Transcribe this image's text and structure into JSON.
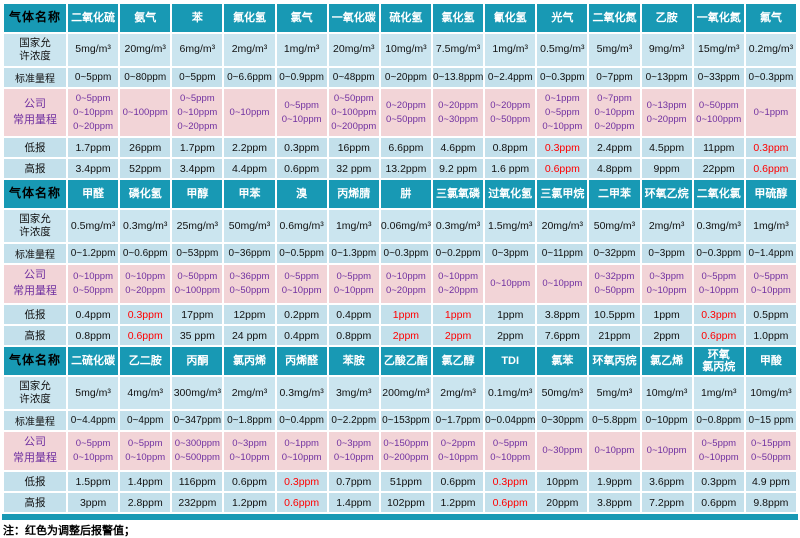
{
  "row_labels": {
    "gas_name": "气体名称",
    "national": [
      "国家允",
      "许浓度"
    ],
    "standard": "标准量程",
    "company": [
      "公司",
      "常用量程"
    ],
    "low": "低报",
    "high": "高报"
  },
  "note": "注：红色为调整后报警值；",
  "colors": {
    "teal": "#1899b4",
    "rowblue": "#cbe5ef",
    "rowblue2": "#c3e0eb",
    "pink": "#f2d4d7",
    "purple": "#7030a0",
    "red": "#ff0000",
    "grid": "#ffffff"
  },
  "sections": [
    {
      "gases": [
        "二氧化硫",
        "氨气",
        "苯",
        "氟化氢",
        "氯气",
        "一氧化碳",
        "硫化氢",
        "氯化氢",
        "氰化氢",
        "光气",
        "二氧化氮",
        "乙胺",
        "一氧化氮",
        "氟气"
      ],
      "national": [
        "5mg/m³",
        "20mg/m³",
        "6mg/m³",
        "2mg/m³",
        "1mg/m³",
        "20mg/m³",
        "10mg/m³",
        "7.5mg/m³",
        "1mg/m³",
        "0.5mg/m³",
        "5mg/m³",
        "9mg/m³",
        "15mg/m³",
        "0.2mg/m³"
      ],
      "standard": [
        "0~5ppm",
        "0~80ppm",
        "0~5ppm",
        "0~6.6ppm",
        "0~0.9ppm",
        "0~48ppm",
        "0~20ppm",
        "0~13.8ppm",
        "0~2.4ppm",
        "0~0.3ppm",
        "0~7ppm",
        "0~13ppm",
        "0~33ppm",
        "0~0.3ppm"
      ],
      "company": [
        [
          "0~5ppm",
          "0~10ppm",
          "0~20ppm"
        ],
        [
          "0~100ppm"
        ],
        [
          "0~5ppm",
          "0~10ppm",
          "0~20ppm"
        ],
        [
          "0~10ppm"
        ],
        [
          "0~5ppm",
          "0~10ppm"
        ],
        [
          "0~50ppm",
          "0~100ppm",
          "0~200ppm"
        ],
        [
          "0~20ppm",
          "0~50ppm"
        ],
        [
          "0~20ppm",
          "0~30ppm"
        ],
        [
          "0~20ppm",
          "0~50ppm"
        ],
        [
          "0~1ppm",
          "0~5ppm",
          "0~10ppm"
        ],
        [
          "0~7ppm",
          "0~10ppm",
          "0~20ppm"
        ],
        [
          "0~13ppm",
          "0~20ppm"
        ],
        [
          "0~50ppm",
          "0~100ppm"
        ],
        [
          "0~1ppm"
        ]
      ],
      "low": [
        "1.7ppm",
        "26ppm",
        "1.7ppm",
        "2.2ppm",
        "0.3ppm",
        "16ppm",
        "6.6ppm",
        "4.6ppm",
        "0.8ppm",
        "0.3ppm",
        "2.4ppm",
        "4.5ppm",
        "11ppm",
        "0.3ppm"
      ],
      "low_red": [
        9,
        13
      ],
      "high": [
        "3.4ppm",
        "52ppm",
        "3.4ppm",
        "4.4ppm",
        "0.6ppm",
        "32 ppm",
        "13.2ppm",
        "9.2 ppm",
        "1.6 ppm",
        "0.6ppm",
        "4.8ppm",
        "9ppm",
        "22ppm",
        "0.6ppm"
      ],
      "high_red": [
        9,
        13
      ]
    },
    {
      "gases": [
        "甲醛",
        "磷化氢",
        "甲醇",
        "甲苯",
        "溴",
        "丙烯腈",
        "肼",
        "三氯氧磷",
        "过氧化氢",
        "三氯甲烷",
        "二甲苯",
        "环氧乙烷",
        "二氧化氯",
        "甲硫醇"
      ],
      "national": [
        "0.5mg/m³",
        "0.3mg/m³",
        "25mg/m³",
        "50mg/m³",
        "0.6mg/m³",
        "1mg/m³",
        "0.06mg/m³",
        "0.3mg/m³",
        "1.5mg/m³",
        "20mg/m³",
        "50mg/m³",
        "2mg/m³",
        "0.3mg/m³",
        "1mg/m³"
      ],
      "standard": [
        "0~1.2ppm",
        "0~0.6ppm",
        "0~53ppm",
        "0~36ppm",
        "0~0.5ppm",
        "0~1.3ppm",
        "0~0.3ppm",
        "0~0.2ppm",
        "0~3ppm",
        "0~11ppm",
        "0~32ppm",
        "0~3ppm",
        "0~0.3ppm",
        "0~1.4ppm"
      ],
      "company": [
        [
          "0~10ppm",
          "0~50ppm"
        ],
        [
          "0~10ppm",
          "0~20ppm"
        ],
        [
          "0~50ppm",
          "0~100ppm"
        ],
        [
          "0~36ppm",
          "0~50ppm"
        ],
        [
          "0~5ppm",
          "0~10ppm"
        ],
        [
          "0~5ppm",
          "0~10ppm"
        ],
        [
          "0~10ppm",
          "0~20ppm"
        ],
        [
          "0~10ppm",
          "0~20ppm"
        ],
        [
          "0~10ppm"
        ],
        [
          "0~10ppm"
        ],
        [
          "0~32ppm",
          "0~50ppm"
        ],
        [
          "0~3ppm",
          "0~10ppm"
        ],
        [
          "0~5ppm",
          "0~10ppm"
        ],
        [
          "0~5ppm",
          "0~10ppm"
        ]
      ],
      "low": [
        "0.4ppm",
        "0.3ppm",
        "17ppm",
        "12ppm",
        "0.2ppm",
        "0.4ppm",
        "1ppm",
        "1ppm",
        "1ppm",
        "3.8ppm",
        "10.5ppm",
        "1ppm",
        "0.3ppm",
        "0.5ppm"
      ],
      "low_red": [
        1,
        6,
        7,
        12
      ],
      "high": [
        "0.8ppm",
        "0.6ppm",
        "35 ppm",
        "24 ppm",
        "0.4ppm",
        "0.8ppm",
        "2ppm",
        "2ppm",
        "2ppm",
        "7.6ppm",
        "21ppm",
        "2ppm",
        "0.6ppm",
        "1.0ppm"
      ],
      "high_red": [
        1,
        6,
        7,
        12
      ]
    },
    {
      "gases": [
        "二硫化碳",
        "乙二胺",
        "丙酮",
        "氯丙烯",
        "丙烯醛",
        "苯胺",
        "乙酸乙酯",
        "氯乙醇",
        "TDI",
        "氯苯",
        "环氧丙烷",
        "氯乙烯",
        [
          "环氧",
          "氯丙烷"
        ],
        "甲酸"
      ],
      "national": [
        "5mg/m³",
        "4mg/m³",
        "300mg/m³",
        "2mg/m³",
        "0.3mg/m³",
        "3mg/m³",
        "200mg/m³",
        "2mg/m³",
        "0.1mg/m³",
        "50mg/m³",
        "5mg/m³",
        "10mg/m³",
        "1mg/m³",
        "10mg/m³"
      ],
      "standard": [
        "0~4.4ppm",
        "0~4ppm",
        "0~347ppm",
        "0~1.8ppm",
        "0~0.4ppm",
        "0~2.2ppm",
        "0~153ppm",
        "0~1.7ppm",
        "0~0.04ppm",
        "0~30ppm",
        "0~5.8ppm",
        "0~10ppm",
        "0~0.8ppm",
        "0~15 ppm"
      ],
      "company": [
        [
          "0~5ppm",
          "0~10ppm"
        ],
        [
          "0~5ppm",
          "0~10ppm"
        ],
        [
          "0~300ppm",
          "0~500ppm"
        ],
        [
          "0~3ppm",
          "0~10ppm"
        ],
        [
          "0~1ppm",
          "0~10ppm"
        ],
        [
          "0~3ppm",
          "0~10ppm"
        ],
        [
          "0~150ppm",
          "0~200ppm"
        ],
        [
          "0~2ppm",
          "0~10ppm"
        ],
        [
          "0~5ppm",
          "0~10ppm"
        ],
        [
          "0~30ppm"
        ],
        [
          "0~10ppm"
        ],
        [
          "0~10ppm"
        ],
        [
          "0~5ppm",
          "0~10ppm"
        ],
        [
          "0~15ppm",
          "0~50ppm"
        ]
      ],
      "low": [
        "1.5ppm",
        "1.4ppm",
        "116ppm",
        "0.6ppm",
        "0.3ppm",
        "0.7ppm",
        "51ppm",
        "0.6ppm",
        "0.3ppm",
        "10ppm",
        "1.9ppm",
        "3.6ppm",
        "0.3ppm",
        "4.9 ppm"
      ],
      "low_red": [
        4,
        8
      ],
      "high": [
        "3ppm",
        "2.8ppm",
        "232ppm",
        "1.2ppm",
        "0.6ppm",
        "1.4ppm",
        "102ppm",
        "1.2ppm",
        "0.6ppm",
        "20ppm",
        "3.8ppm",
        "7.2ppm",
        "0.6ppm",
        "9.8ppm"
      ],
      "high_red": [
        4,
        8
      ]
    }
  ]
}
